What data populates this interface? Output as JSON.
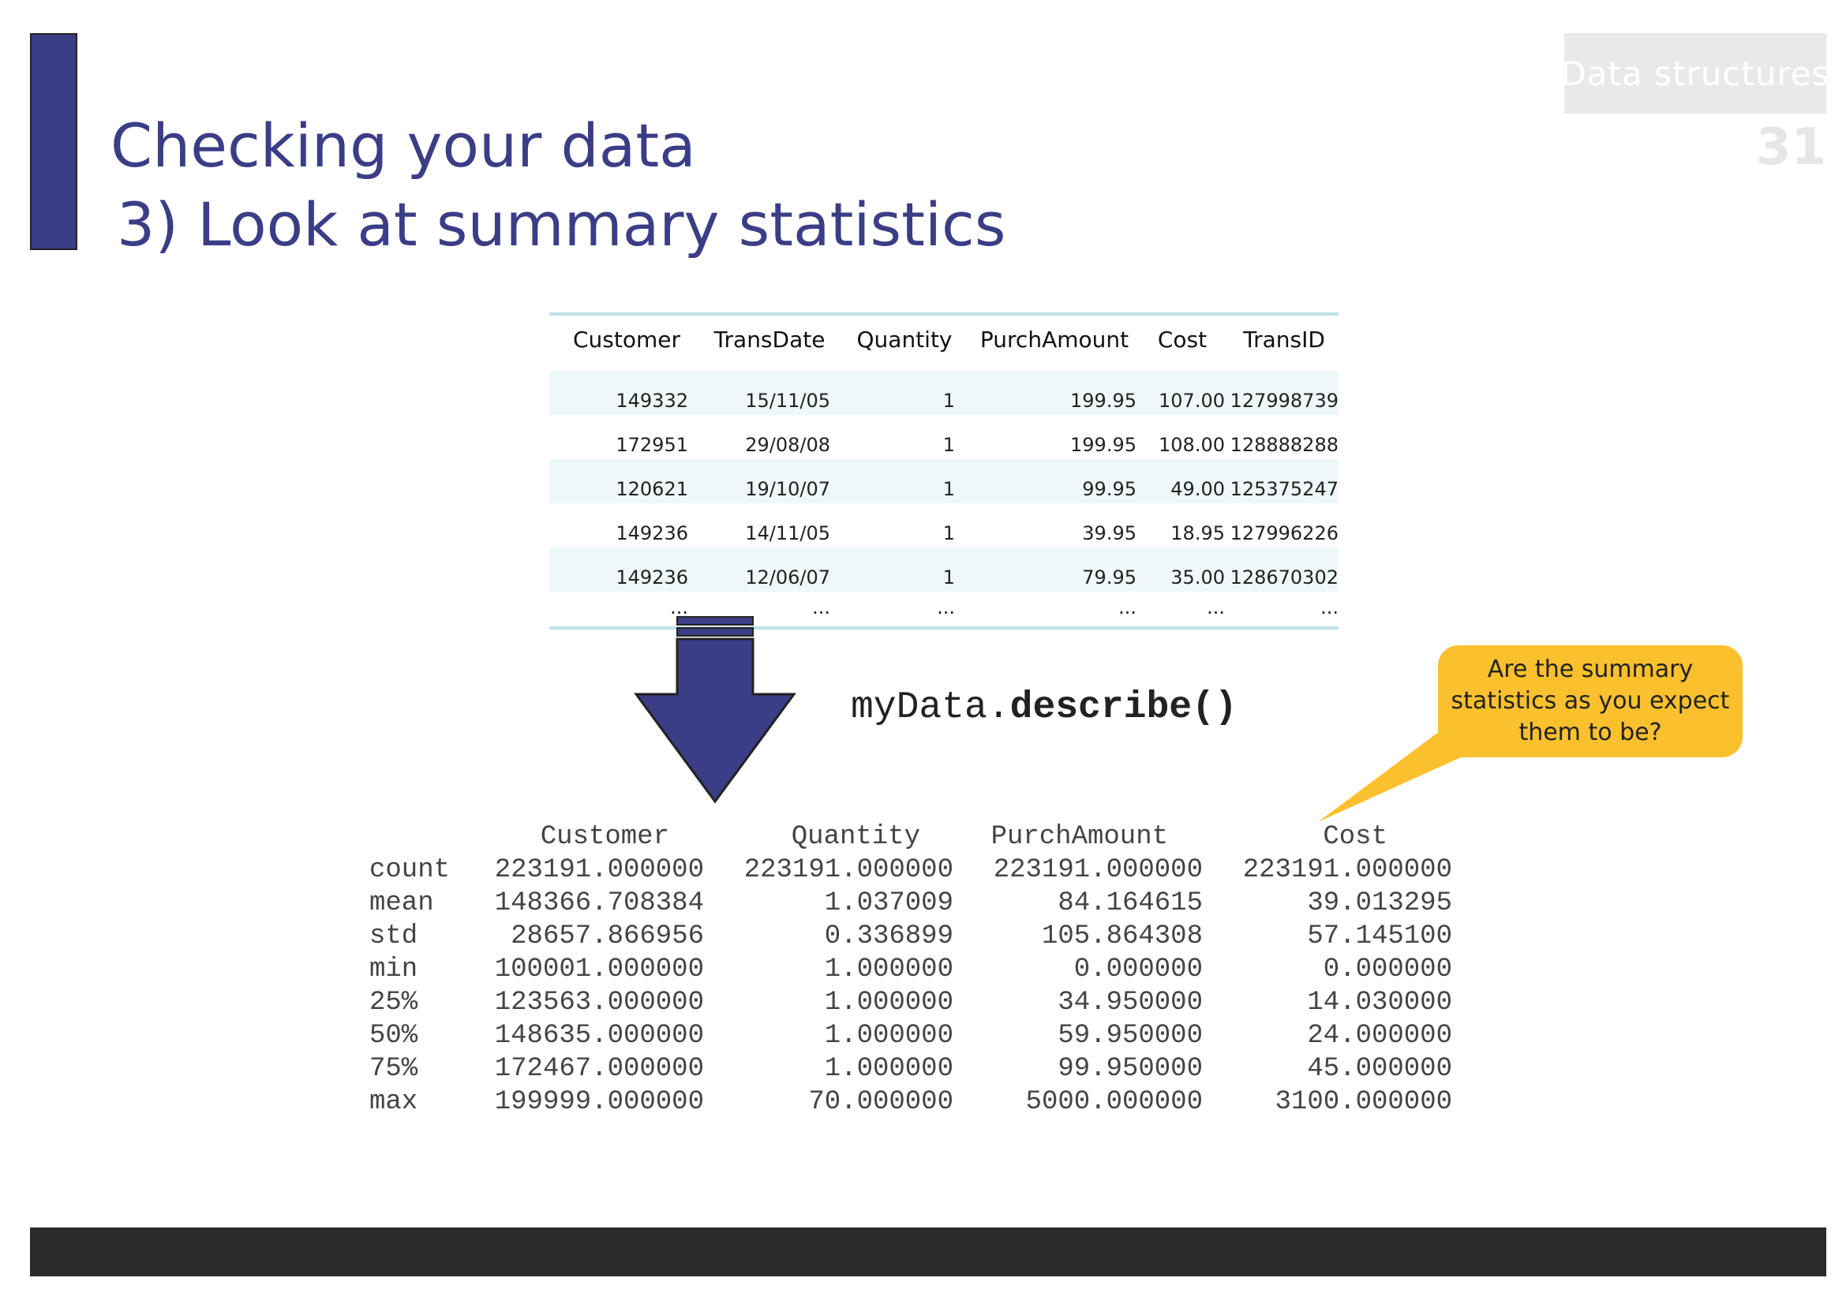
{
  "slide": {
    "title_line1": "Checking your data",
    "title_line2": "3) Look at summary statistics",
    "section": "Data structures",
    "page_number": "31"
  },
  "colors": {
    "accent": "#3b3d86",
    "callout": "#fbc02d",
    "table_border": "#bfe3e6",
    "footer": "#2a2a2a"
  },
  "table": {
    "headers": [
      "Customer",
      "TransDate",
      "Quantity",
      "PurchAmount",
      "Cost",
      "TransID"
    ],
    "rows": [
      [
        "149332",
        "15/11/05",
        "1",
        "199.95",
        "107.00",
        "127998739"
      ],
      [
        "172951",
        "29/08/08",
        "1",
        "199.95",
        "108.00",
        "128888288"
      ],
      [
        "120621",
        "19/10/07",
        "1",
        "99.95",
        "49.00",
        "125375247"
      ],
      [
        "149236",
        "14/11/05",
        "1",
        "39.95",
        "18.95",
        "127996226"
      ],
      [
        "149236",
        "12/06/07",
        "1",
        "79.95",
        "35.00",
        "128670302"
      ],
      [
        "...",
        "...",
        "...",
        "...",
        "...",
        "..."
      ]
    ]
  },
  "code": {
    "object": "myData.",
    "method": "describe()"
  },
  "callout": {
    "text": "Are the summary statistics as you expect them to be?"
  },
  "stats": {
    "headers": [
      "",
      "Customer",
      "Quantity",
      "PurchAmount",
      "Cost"
    ],
    "rows": [
      [
        "count",
        "223191.000000",
        "223191.000000",
        "223191.000000",
        "223191.000000"
      ],
      [
        "mean",
        "148366.708384",
        "1.037009",
        "84.164615",
        "39.013295"
      ],
      [
        "std",
        "28657.866956",
        "0.336899",
        "105.864308",
        "57.145100"
      ],
      [
        "min",
        "100001.000000",
        "1.000000",
        "0.000000",
        "0.000000"
      ],
      [
        "25%",
        "123563.000000",
        "1.000000",
        "34.950000",
        "14.030000"
      ],
      [
        "50%",
        "148635.000000",
        "1.000000",
        "59.950000",
        "24.000000"
      ],
      [
        "75%",
        "172467.000000",
        "1.000000",
        "99.950000",
        "45.000000"
      ],
      [
        "max",
        "199999.000000",
        "70.000000",
        "5000.000000",
        "3100.000000"
      ]
    ]
  }
}
